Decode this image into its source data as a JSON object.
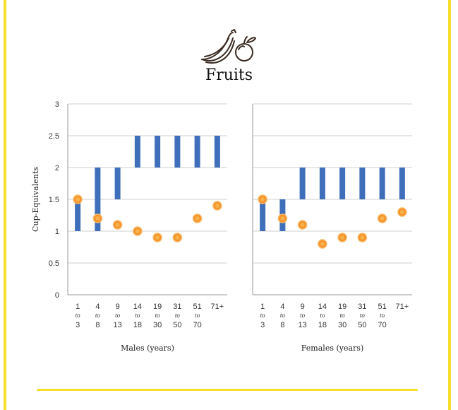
{
  "title": "Fruits",
  "icon": "fruit-icon",
  "colors": {
    "bar": "#3f6fba",
    "dot_fill": "#f6922e",
    "dot_inner": "#f7b24a",
    "border": "#f7de2c"
  },
  "chart_data": [
    {
      "type": "bar",
      "name": "males",
      "ylabel": "Cup-Equivalents",
      "xlabel": "Males (years)",
      "ylim": [
        0,
        3
      ],
      "yticks": [
        "0",
        "0.5",
        "1",
        "1.5",
        "2",
        "2.5",
        "3"
      ],
      "categories": [
        [
          "1",
          "to",
          "3"
        ],
        [
          "4",
          "to",
          "8"
        ],
        [
          "9",
          "to",
          "13"
        ],
        [
          "14",
          "to",
          "18"
        ],
        [
          "19",
          "to",
          "30"
        ],
        [
          "31",
          "to",
          "50"
        ],
        [
          "51",
          "to",
          "70"
        ],
        [
          "71+"
        ]
      ],
      "ranges": [
        [
          1,
          1.5
        ],
        [
          1,
          2
        ],
        [
          1.5,
          2
        ],
        [
          2,
          2.5
        ],
        [
          2,
          2.5
        ],
        [
          2,
          2.5
        ],
        [
          2,
          2.5
        ],
        [
          2,
          2.5
        ]
      ],
      "points": [
        1.5,
        1.2,
        1.1,
        1.0,
        0.9,
        0.9,
        1.2,
        1.4
      ]
    },
    {
      "type": "bar",
      "name": "females",
      "xlabel": "Females (years)",
      "ylim": [
        0,
        3
      ],
      "categories": [
        [
          "1",
          "to",
          "3"
        ],
        [
          "4",
          "to",
          "8"
        ],
        [
          "9",
          "to",
          "13"
        ],
        [
          "14",
          "to",
          "18"
        ],
        [
          "19",
          "to",
          "30"
        ],
        [
          "31",
          "to",
          "50"
        ],
        [
          "51",
          "to",
          "70"
        ],
        [
          "71+"
        ]
      ],
      "ranges": [
        [
          1,
          1.5
        ],
        [
          1,
          1.5
        ],
        [
          1.5,
          2
        ],
        [
          1.5,
          2
        ],
        [
          1.5,
          2
        ],
        [
          1.5,
          2
        ],
        [
          1.5,
          2
        ],
        [
          1.5,
          2
        ]
      ],
      "points": [
        1.5,
        1.2,
        1.1,
        0.8,
        0.9,
        0.9,
        1.2,
        1.3
      ]
    }
  ]
}
